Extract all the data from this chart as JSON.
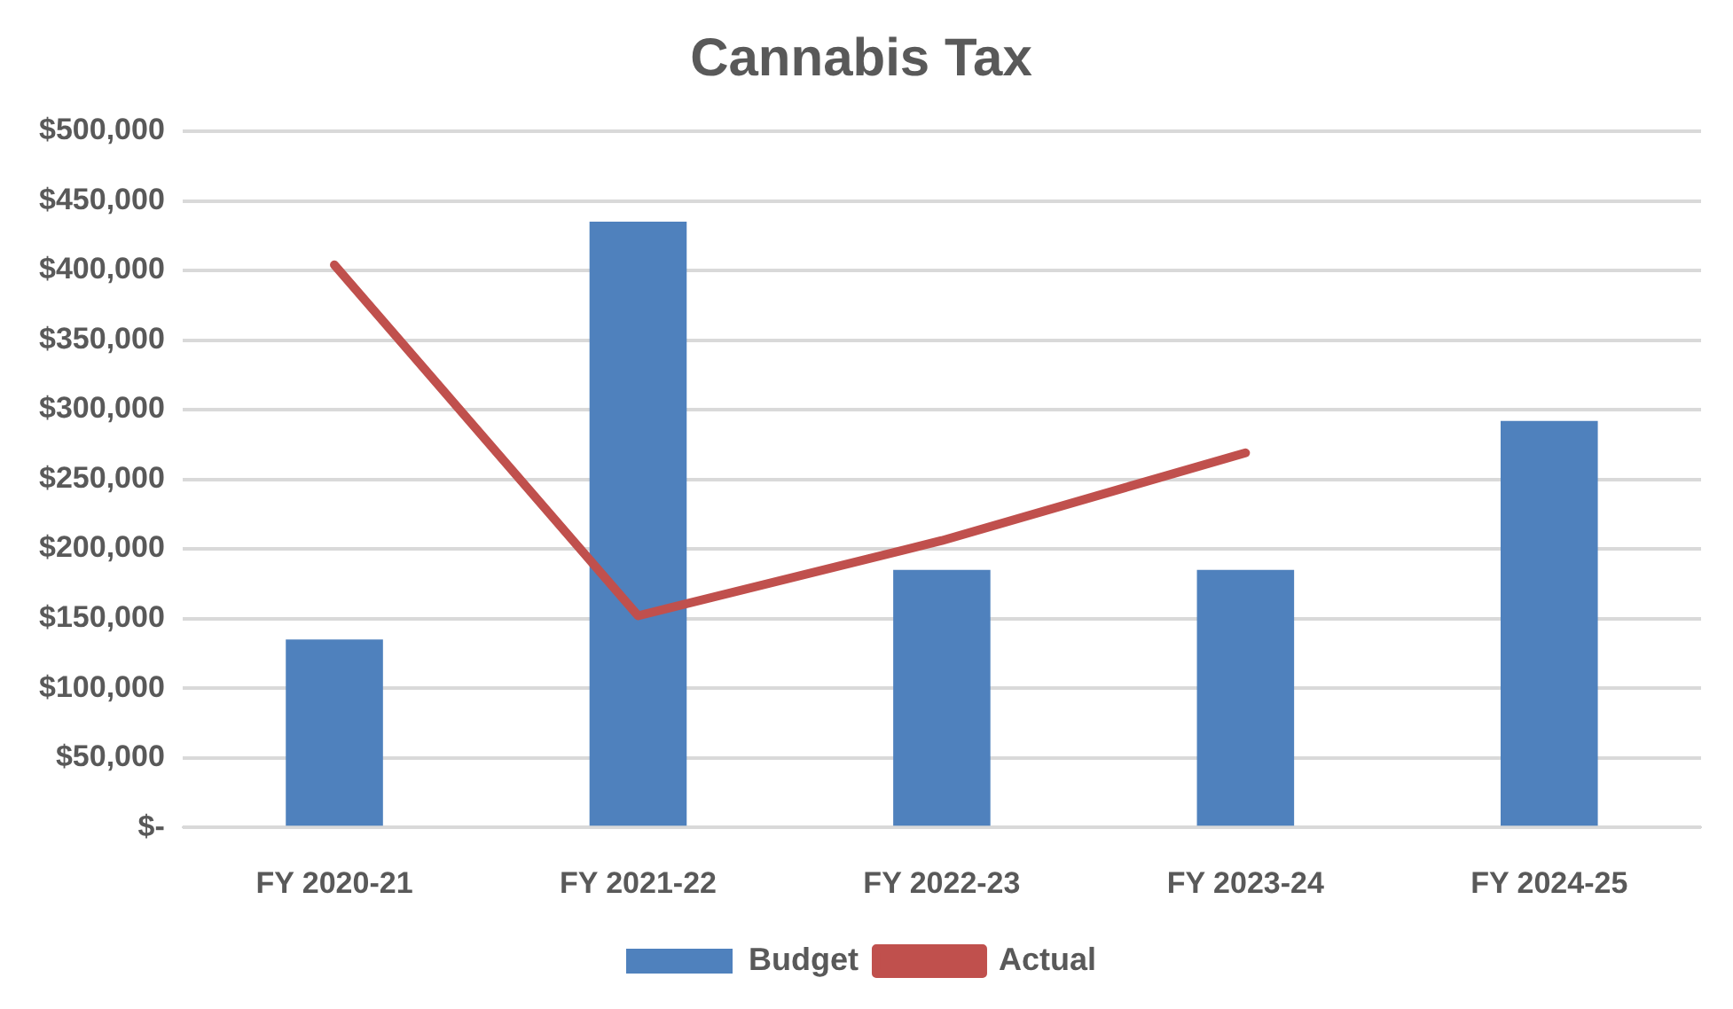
{
  "chart_data": {
    "type": "bar",
    "title": "Cannabis Tax",
    "categories": [
      "FY 2020-21",
      "FY 2021-22",
      "FY 2022-23",
      "FY 2023-24",
      "FY 2024-25"
    ],
    "series": [
      {
        "name": "Budget",
        "color": "#4f81bd",
        "values": [
          135000,
          435000,
          185000,
          185000,
          292000
        ]
      },
      {
        "name": "Actual",
        "type": "line",
        "color": "#c0504d",
        "values": [
          404000,
          152000,
          206000,
          269000,
          null
        ]
      }
    ],
    "ylim": [
      0,
      500000
    ],
    "yticks": [
      {
        "value": 0,
        "label": "$-"
      },
      {
        "value": 50000,
        "label": "$50,000"
      },
      {
        "value": 100000,
        "label": "$100,000"
      },
      {
        "value": 150000,
        "label": "$150,000"
      },
      {
        "value": 200000,
        "label": "$200,000"
      },
      {
        "value": 250000,
        "label": "$250,000"
      },
      {
        "value": 300000,
        "label": "$300,000"
      },
      {
        "value": 350000,
        "label": "$350,000"
      },
      {
        "value": 400000,
        "label": "$400,000"
      },
      {
        "value": 450000,
        "label": "$450,000"
      },
      {
        "value": 500000,
        "label": "$500,000"
      }
    ],
    "grid": "y",
    "legend": "bottom",
    "marker": "none"
  }
}
